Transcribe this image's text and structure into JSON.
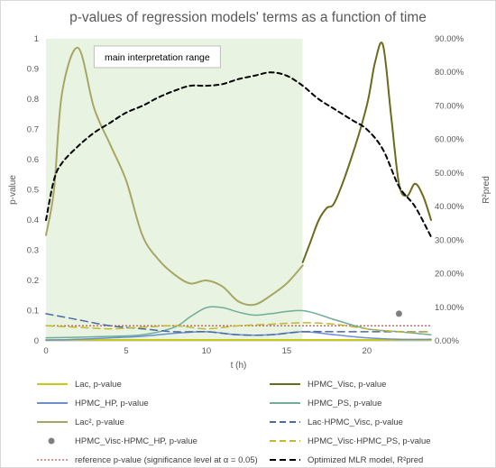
{
  "chart_data": {
    "type": "line",
    "title": "p-values of regression models' terms as a function of time",
    "xlabel": "t (h)",
    "ylabel": "p-value",
    "y2label": "R²pred",
    "xlim": [
      0,
      24
    ],
    "ylim": [
      0,
      1
    ],
    "y2lim": [
      0,
      90
    ],
    "x_ticks": [
      "0",
      "5",
      "10",
      "15",
      "20"
    ],
    "y_ticks": [
      "0",
      "0.1",
      "0.2",
      "0.3",
      "0.4",
      "0.5",
      "0.6",
      "0.7",
      "0.8",
      "0.9",
      "1"
    ],
    "y2_ticks": [
      "0.00%",
      "10.00%",
      "20.00%",
      "30.00%",
      "40.00%",
      "50.00%",
      "60.00%",
      "70.00%",
      "80.00%",
      "90.00%"
    ],
    "shaded_region": {
      "x_start": 0,
      "x_end": 16,
      "color": "#e9f3e1",
      "label": "main interpretation range"
    },
    "reference_line": {
      "name": "reference p-value (significance level at α = 0.05)",
      "y": 0.05,
      "color": "#c0504d"
    },
    "series": [
      {
        "name": "Lac, p-value",
        "color": "#c9c919",
        "axis": "left",
        "style": "solid",
        "width": 2,
        "x": [
          0,
          24
        ],
        "y": [
          0.003,
          0.003
        ]
      },
      {
        "name": "HPMC_Visc, p-value",
        "color": "#6b6b1d",
        "axis": "left",
        "style": "solid",
        "width": 2,
        "x": [
          16,
          16.5,
          17,
          17.5,
          18,
          19,
          20,
          20.5,
          21,
          21.5,
          22,
          22.5,
          23,
          23.5,
          24
        ],
        "y": [
          0.26,
          0.33,
          0.4,
          0.44,
          0.46,
          0.6,
          0.78,
          0.92,
          0.98,
          0.75,
          0.52,
          0.48,
          0.52,
          0.48,
          0.4
        ]
      },
      {
        "name": "HPMC_HP, p-value",
        "color": "#6e8fce",
        "axis": "left",
        "style": "solid",
        "width": 1.5,
        "x": [
          0,
          2,
          4,
          6,
          8,
          10,
          12,
          14,
          16,
          18,
          20,
          22,
          24
        ],
        "y": [
          0.002,
          0.005,
          0.01,
          0.015,
          0.025,
          0.03,
          0.02,
          0.02,
          0.03,
          0.02,
          0.01,
          0.005,
          0.005
        ]
      },
      {
        "name": "HPMC_PS, p-value",
        "color": "#70ad9a",
        "axis": "left",
        "style": "solid",
        "width": 1.5,
        "x": [
          0,
          2,
          4,
          6,
          8,
          9,
          10,
          11,
          12,
          13,
          14,
          16,
          18,
          20,
          22,
          24
        ],
        "y": [
          0.01,
          0.012,
          0.015,
          0.02,
          0.045,
          0.08,
          0.11,
          0.11,
          0.095,
          0.085,
          0.09,
          0.1,
          0.07,
          0.04,
          0.03,
          0.02
        ]
      },
      {
        "name": "Lac², p-value",
        "color": "#a7a765",
        "axis": "left",
        "style": "solid",
        "width": 2,
        "x": [
          0,
          0.5,
          1,
          2,
          3,
          4,
          5,
          6,
          7,
          8,
          9,
          10,
          11,
          12,
          13,
          14,
          15,
          16
        ],
        "y": [
          0.35,
          0.5,
          0.82,
          0.97,
          0.77,
          0.65,
          0.53,
          0.35,
          0.27,
          0.22,
          0.19,
          0.2,
          0.18,
          0.13,
          0.12,
          0.15,
          0.19,
          0.25
        ]
      },
      {
        "name": "Lac·HPMC_Visc, p-value",
        "color": "#4a6aa5",
        "axis": "left",
        "style": "dash",
        "width": 1.5,
        "x": [
          0,
          2,
          4,
          6,
          8,
          10,
          12,
          14,
          16,
          18,
          20,
          22,
          24
        ],
        "y": [
          0.09,
          0.07,
          0.05,
          0.04,
          0.03,
          0.03,
          0.02,
          0.02,
          0.03,
          0.03,
          0.03,
          0.03,
          0.03
        ]
      },
      {
        "name": "HPMC_Visc·HPMC_HP, p-value",
        "color": "#7f7f7f",
        "axis": "left",
        "style": "marker",
        "x": [
          22
        ],
        "y": [
          0.09
        ]
      },
      {
        "name": "HPMC_Visc·HPMC_PS, p-value",
        "color": "#c2b830",
        "axis": "left",
        "style": "dash",
        "width": 1.5,
        "x": [
          0,
          2,
          4,
          6,
          8,
          10,
          12,
          14,
          16,
          18,
          20,
          22,
          24
        ],
        "y": [
          0.05,
          0.045,
          0.04,
          0.045,
          0.05,
          0.04,
          0.05,
          0.055,
          0.06,
          0.055,
          0.04,
          0.03,
          0.03
        ]
      },
      {
        "name": "Optimized MLR model, R²pred",
        "color": "#000000",
        "axis": "right",
        "style": "dash",
        "width": 2,
        "x": [
          0,
          0.5,
          1,
          2,
          3,
          4,
          5,
          6,
          7,
          8,
          9,
          10,
          11,
          12,
          13,
          14,
          15,
          16,
          17,
          18,
          19,
          20,
          21,
          22,
          23,
          24
        ],
        "y": [
          36,
          48,
          53,
          58,
          62,
          65,
          68,
          70,
          72.5,
          74.5,
          76,
          76,
          76.5,
          78,
          79,
          80,
          79,
          76,
          72,
          69,
          66,
          63,
          57,
          46,
          40,
          31
        ]
      }
    ],
    "legend": {
      "placement": "bottom",
      "entries": [
        "Lac, p-value",
        "HPMC_Visc, p-value",
        "HPMC_HP, p-value",
        "HPMC_PS, p-value",
        "Lac², p-value",
        "Lac·HPMC_Visc, p-value",
        "HPMC_Visc·HPMC_HP, p-value",
        "HPMC_Visc·HPMC_PS, p-value",
        "reference p-value (significance level at α = 0.05)",
        "Optimized MLR model, R²pred"
      ]
    }
  }
}
